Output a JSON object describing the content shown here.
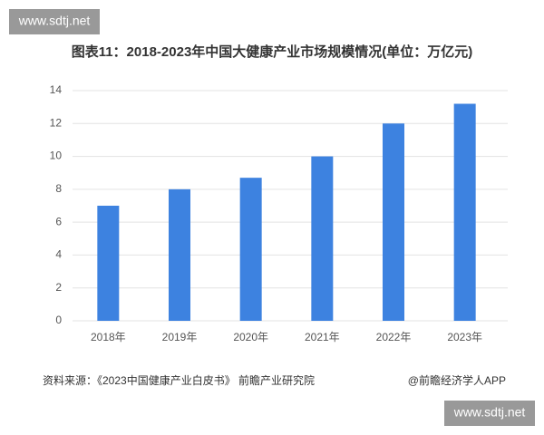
{
  "watermarks": [
    "www.sdtj.net",
    "www.sdtj.net"
  ],
  "chart_data": {
    "type": "bar",
    "title": "图表11：2018-2023年中国大健康产业市场规模情况(单位：万亿元)",
    "categories": [
      "2018年",
      "2019年",
      "2020年",
      "2021年",
      "2022年",
      "2023年"
    ],
    "values": [
      7.0,
      8.0,
      8.7,
      10.0,
      12.0,
      13.2
    ],
    "color": "#3d82e0",
    "ylim": [
      0,
      14
    ],
    "yticks": [
      0,
      2,
      4,
      6,
      8,
      10,
      12,
      14
    ],
    "grid": true,
    "source": "资料来源：《2023中国健康产业白皮书》 前瞻产业研究院",
    "credit": "@前瞻经济学人APP"
  }
}
